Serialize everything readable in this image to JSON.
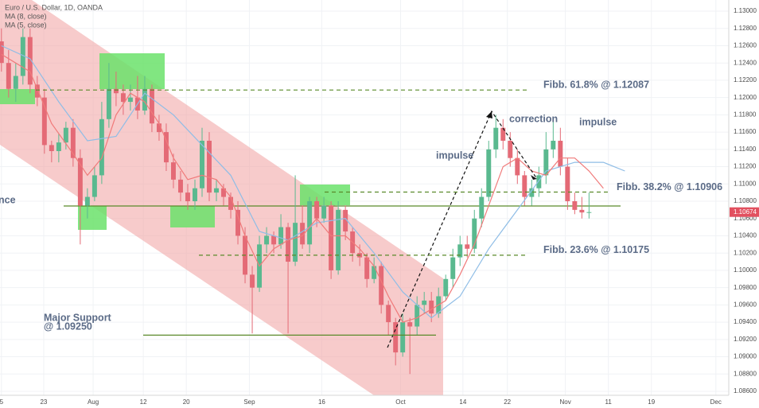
{
  "chart_data": {
    "type": "candlestick",
    "title": "Euro / U.S. Dollar, 1D, OANDA",
    "up_color": "#5ab98f",
    "down_color": "#e46a76",
    "open": [
      1.1265,
      1.124,
      1.121,
      1.1225,
      1.127,
      1.1215,
      1.12,
      1.1145,
      1.1138,
      1.1148,
      1.1165,
      1.113,
      1.1075,
      1.1085,
      1.111,
      1.1175,
      1.121,
      1.1205,
      1.1195,
      1.12,
      1.1185,
      1.121,
      1.117,
      1.116,
      1.1125,
      1.1105,
      1.109,
      1.108,
      1.1095,
      1.115,
      1.109,
      1.1095,
      1.1085,
      1.107,
      1.104,
      1.0995,
      1.098,
      1.103,
      1.104,
      1.103,
      1.105,
      1.101,
      1.1055,
      1.103,
      1.108,
      1.106,
      1.1075,
      1.1,
      1.107,
      1.1045,
      1.102,
      1.1015,
      1.099,
      1.1005,
      1.096,
      1.094,
      1.0905,
      1.094,
      1.0935,
      1.096,
      1.0965,
      1.095,
      1.097,
      1.099,
      1.1015,
      1.103,
      1.1025,
      1.106,
      1.1085,
      1.114,
      1.1165,
      1.115,
      1.113,
      1.111,
      1.1085,
      1.1095,
      1.111,
      1.114,
      1.115,
      1.112,
      1.108,
      1.107,
      1.1067
    ],
    "high": [
      1.128,
      1.1255,
      1.124,
      1.128,
      1.128,
      1.1225,
      1.121,
      1.115,
      1.1158,
      1.1172,
      1.1175,
      1.114,
      1.1095,
      1.112,
      1.1195,
      1.124,
      1.123,
      1.1215,
      1.1215,
      1.1225,
      1.1225,
      1.1215,
      1.118,
      1.117,
      1.1135,
      1.1115,
      1.11,
      1.1105,
      1.1165,
      1.116,
      1.1105,
      1.11,
      1.109,
      1.108,
      1.105,
      1.1005,
      1.104,
      1.105,
      1.1045,
      1.1065,
      1.1055,
      1.111,
      1.1075,
      1.1085,
      1.1085,
      1.1085,
      1.108,
      1.108,
      1.1075,
      1.105,
      1.103,
      1.102,
      1.1015,
      1.101,
      1.0965,
      1.0945,
      1.095,
      1.0945,
      1.097,
      1.0975,
      1.0975,
      1.098,
      1.0995,
      1.1025,
      1.104,
      1.104,
      1.107,
      1.1095,
      1.115,
      1.118,
      1.1175,
      1.116,
      1.114,
      1.1115,
      1.1105,
      1.112,
      1.116,
      1.1175,
      1.1165,
      1.113,
      1.109,
      1.1085,
      1.109
    ],
    "low": [
      1.123,
      1.12,
      1.1195,
      1.1215,
      1.1205,
      1.119,
      1.1135,
      1.1125,
      1.1125,
      1.114,
      1.112,
      1.103,
      1.106,
      1.108,
      1.11,
      1.1165,
      1.119,
      1.118,
      1.1185,
      1.1175,
      1.118,
      1.116,
      1.115,
      1.1115,
      1.1095,
      1.108,
      1.107,
      1.107,
      1.1085,
      1.108,
      1.108,
      1.1075,
      1.106,
      1.103,
      1.0985,
      1.0927,
      1.0975,
      1.102,
      1.102,
      1.1025,
      1.0927,
      1.1005,
      1.1025,
      1.102,
      1.105,
      1.1055,
      1.099,
      1.0995,
      1.1035,
      1.101,
      1.1005,
      1.098,
      1.0985,
      1.095,
      1.0925,
      1.089,
      1.09,
      1.088,
      1.0925,
      1.095,
      1.094,
      1.0945,
      1.0965,
      1.098,
      1.1005,
      1.1015,
      1.102,
      1.105,
      1.108,
      1.113,
      1.114,
      1.112,
      1.11,
      1.1075,
      1.1075,
      1.1085,
      1.11,
      1.113,
      1.111,
      1.107,
      1.1065,
      1.106,
      1.106
    ],
    "close": [
      1.124,
      1.121,
      1.1225,
      1.127,
      1.1215,
      1.12,
      1.1145,
      1.1138,
      1.1148,
      1.1165,
      1.113,
      1.1075,
      1.1085,
      1.111,
      1.1175,
      1.121,
      1.1205,
      1.1195,
      1.12,
      1.1185,
      1.121,
      1.117,
      1.116,
      1.1125,
      1.1105,
      1.109,
      1.108,
      1.1095,
      1.115,
      1.109,
      1.1095,
      1.1085,
      1.107,
      1.104,
      1.0995,
      1.098,
      1.103,
      1.104,
      1.103,
      1.105,
      1.101,
      1.1055,
      1.103,
      1.108,
      1.106,
      1.1075,
      1.1,
      1.107,
      1.1045,
      1.102,
      1.1015,
      1.099,
      1.1005,
      1.096,
      1.094,
      1.0905,
      1.094,
      1.0935,
      1.096,
      1.0965,
      1.095,
      1.097,
      1.099,
      1.1015,
      1.103,
      1.1025,
      1.106,
      1.1085,
      1.114,
      1.1165,
      1.115,
      1.113,
      1.111,
      1.1085,
      1.1095,
      1.111,
      1.114,
      1.115,
      1.112,
      1.108,
      1.107,
      1.1067,
      1.10674
    ],
    "ma": [
      {
        "name": "MA (8, close)",
        "color": "#8fbde6",
        "x": [
          0,
          4,
          8,
          12,
          16,
          20,
          24,
          28,
          32,
          36,
          40,
          44,
          48,
          52,
          56,
          60,
          64,
          68,
          72,
          76,
          80,
          84,
          87
        ],
        "values": [
          1.126,
          1.1245,
          1.1195,
          1.115,
          1.1155,
          1.1205,
          1.118,
          1.1145,
          1.111,
          1.1045,
          1.1035,
          1.1055,
          1.106,
          1.102,
          1.0975,
          1.0945,
          1.097,
          1.1025,
          1.107,
          1.1115,
          1.1125,
          1.1125,
          1.1115
        ]
      },
      {
        "name": "MA (5, close)",
        "color": "#f07a7a",
        "x": [
          0,
          4,
          7,
          10,
          12,
          14,
          16,
          18,
          20,
          22,
          24,
          26,
          28,
          30,
          32,
          34,
          36,
          38,
          40,
          42,
          44,
          46,
          48,
          50,
          52,
          54,
          56,
          58,
          60,
          62,
          64,
          66,
          68,
          70,
          72,
          74,
          76,
          78,
          80,
          82,
          84
        ],
        "values": [
          1.125,
          1.123,
          1.117,
          1.1135,
          1.111,
          1.113,
          1.118,
          1.1205,
          1.1195,
          1.117,
          1.113,
          1.1105,
          1.111,
          1.1105,
          1.1085,
          1.104,
          1.1005,
          1.1025,
          1.1035,
          1.104,
          1.106,
          1.104,
          1.104,
          1.1025,
          1.1005,
          1.097,
          1.094,
          1.0945,
          1.0955,
          1.0965,
          1.0995,
          1.103,
          1.1075,
          1.112,
          1.113,
          1.1115,
          1.111,
          1.113,
          1.113,
          1.1115,
          1.1095
        ]
      }
    ],
    "ylim": [
      1.08554,
      1.13129
    ],
    "yticks": [
      {
        "value": 1.086,
        "label": "1.08600"
      },
      {
        "value": 1.088,
        "label": "1.08800"
      },
      {
        "value": 1.09,
        "label": "1.09000"
      },
      {
        "value": 1.092,
        "label": "1.09200"
      },
      {
        "value": 1.094,
        "label": "1.09400"
      },
      {
        "value": 1.096,
        "label": "1.09600"
      },
      {
        "value": 1.098,
        "label": "1.09800"
      },
      {
        "value": 1.1,
        "label": "1.10000"
      },
      {
        "value": 1.102,
        "label": "1.10200"
      },
      {
        "value": 1.104,
        "label": "1.10400"
      },
      {
        "value": 1.106,
        "label": "1.10600"
      },
      {
        "value": 1.108,
        "label": "1.10800"
      },
      {
        "value": 1.11,
        "label": "1.11000"
      },
      {
        "value": 1.112,
        "label": "1.11200"
      },
      {
        "value": 1.114,
        "label": "1.11400"
      },
      {
        "value": 1.116,
        "label": "1.11600"
      },
      {
        "value": 1.118,
        "label": "1.11800"
      },
      {
        "value": 1.12,
        "label": "1.12000"
      },
      {
        "value": 1.122,
        "label": "1.12200"
      },
      {
        "value": 1.124,
        "label": "1.12400"
      },
      {
        "value": 1.126,
        "label": "1.12600"
      },
      {
        "value": 1.128,
        "label": "1.12800"
      },
      {
        "value": 1.13,
        "label": "1.13000"
      }
    ],
    "xlim": [
      -0.2,
      101.5
    ],
    "xticks": [
      {
        "value": 0,
        "label": "5"
      },
      {
        "value": 5.9,
        "label": "23"
      },
      {
        "value": 12.8,
        "label": "Aug"
      },
      {
        "value": 19.8,
        "label": "12"
      },
      {
        "value": 25.8,
        "label": "20"
      },
      {
        "value": 34.6,
        "label": "Sep"
      },
      {
        "value": 44.7,
        "label": "16"
      },
      {
        "value": 55.7,
        "label": "Oct"
      },
      {
        "value": 64.4,
        "label": "14"
      },
      {
        "value": 70.6,
        "label": "22"
      },
      {
        "value": 78.7,
        "label": "Nov"
      },
      {
        "value": 84.7,
        "label": "11"
      },
      {
        "value": 90.7,
        "label": "19"
      },
      {
        "value": 99.7,
        "label": "Dec"
      }
    ],
    "last_price": {
      "value": 1.10674,
      "label": "1.10674"
    },
    "levels": [
      {
        "label": "Fibb. 61.8% @ 1.12087",
        "value": 1.12087
      },
      {
        "label": "Fibb. 38.2% @ 1.10906",
        "value": 1.10906
      },
      {
        "label": "Fibb. 23.6% @ 1.10175",
        "value": 1.10175
      },
      {
        "label": [
          "Major Support",
          "@ 1.09250"
        ],
        "value": 1.0925
      }
    ],
    "notes": [
      "impulse",
      "correction",
      "impulse",
      "nce"
    ]
  }
}
